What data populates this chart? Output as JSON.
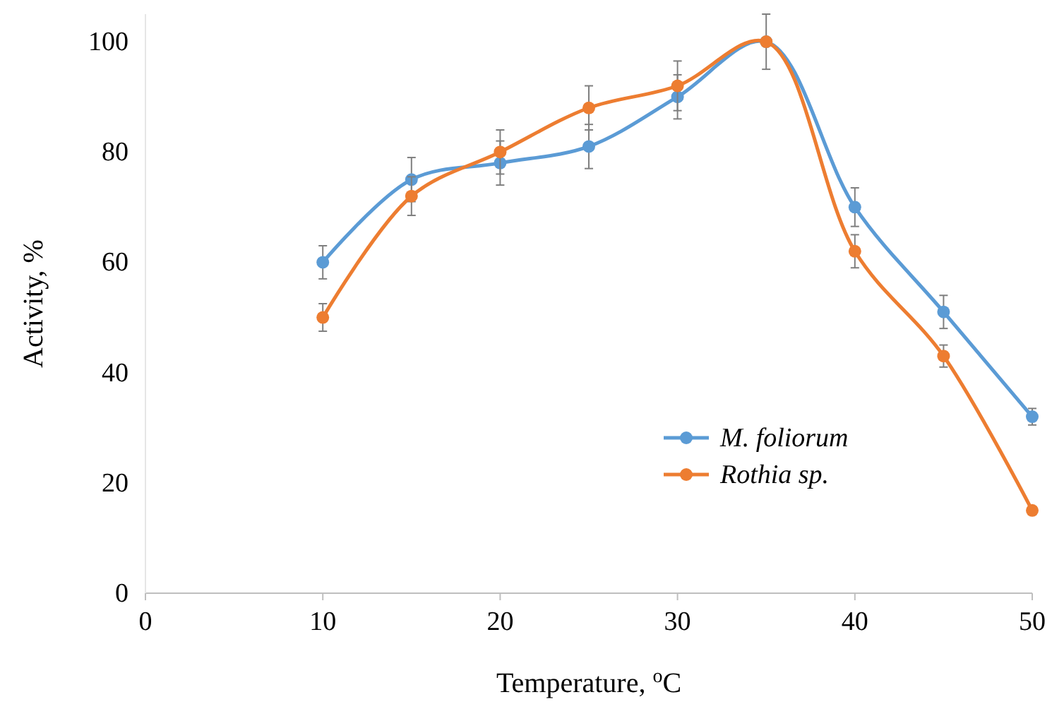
{
  "chart_data": {
    "type": "line",
    "xlabel": "Temperature, $^{o}$C",
    "ylabel": "Activity, %",
    "x": [
      10,
      15,
      20,
      25,
      30,
      35,
      40,
      45,
      50
    ],
    "series": [
      {
        "name": "M. foliorum",
        "color": "#5b9bd5",
        "values": [
          60,
          75,
          78,
          81,
          90,
          100,
          70,
          51,
          32
        ],
        "errors": [
          3,
          4,
          4,
          4,
          4,
          null,
          3.5,
          3,
          1.5
        ]
      },
      {
        "name": "Rothia sp.",
        "color": "#ed7d31",
        "values": [
          50,
          72,
          80,
          88,
          92,
          100,
          62,
          43,
          15
        ],
        "errors": [
          2.5,
          3.5,
          4,
          4,
          4.5,
          5,
          3,
          2,
          null
        ]
      }
    ],
    "xlim": [
      0,
      50
    ],
    "xticks": [
      0,
      10,
      20,
      30,
      40,
      50
    ],
    "ylim": [
      0,
      105
    ],
    "yticks": [
      0,
      20,
      40,
      60,
      80,
      100
    ],
    "grid": false,
    "legend": "bottom right",
    "marker": "circle",
    "line_style": "solid"
  }
}
